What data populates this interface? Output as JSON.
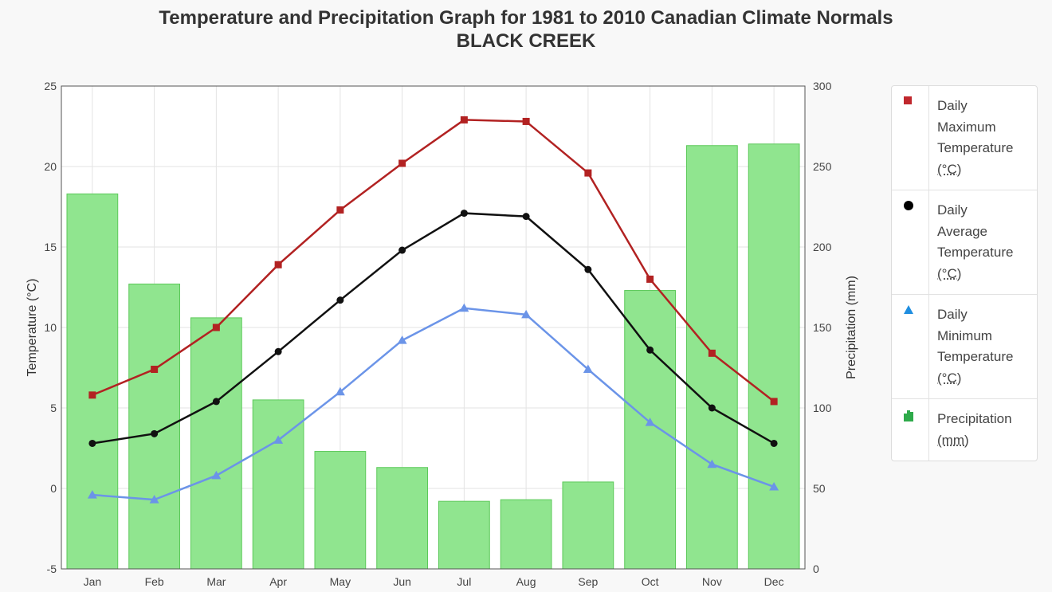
{
  "title": {
    "line1": "Temperature and Precipitation Graph for 1981 to 2010 Canadian Climate Normals",
    "line2": "BLACK CREEK"
  },
  "chart_data": {
    "type": "bar+line",
    "categories": [
      "Jan",
      "Feb",
      "Mar",
      "Apr",
      "May",
      "Jun",
      "Jul",
      "Aug",
      "Sep",
      "Oct",
      "Nov",
      "Dec"
    ],
    "y_left": {
      "label": "Temperature (°C)",
      "ylim": [
        -5,
        25
      ],
      "ticks": [
        -5,
        0,
        5,
        10,
        15,
        20,
        25
      ]
    },
    "y_right": {
      "label": "Precipitation (mm)",
      "ylim": [
        0,
        300
      ],
      "ticks": [
        0,
        50,
        100,
        150,
        200,
        250,
        300
      ]
    },
    "grid": true,
    "legend_position": "right",
    "series": [
      {
        "name": "Daily Maximum Temperature (°C)",
        "type": "line",
        "axis": "left",
        "marker": "square",
        "color": "#b22222",
        "values": [
          5.8,
          7.4,
          10.0,
          13.9,
          17.3,
          20.2,
          22.9,
          22.8,
          19.6,
          13.0,
          8.4,
          5.4
        ]
      },
      {
        "name": "Daily Average Temperature (°C)",
        "type": "line",
        "axis": "left",
        "marker": "circle",
        "color": "#111111",
        "values": [
          2.8,
          3.4,
          5.4,
          8.5,
          11.7,
          14.8,
          17.1,
          16.9,
          13.6,
          8.6,
          5.0,
          2.8
        ]
      },
      {
        "name": "Daily Minimum Temperature (°C)",
        "type": "line",
        "axis": "left",
        "marker": "triangle",
        "color": "#6b94e8",
        "values": [
          -0.4,
          -0.7,
          0.8,
          3.0,
          6.0,
          9.2,
          11.2,
          10.8,
          7.4,
          4.1,
          1.5,
          0.1
        ]
      },
      {
        "name": "Precipitation (mm)",
        "type": "bar",
        "axis": "right",
        "color": "#90e58f",
        "values": [
          233,
          177,
          156,
          105,
          73,
          63,
          42,
          43,
          54,
          173,
          263,
          264
        ]
      }
    ]
  },
  "legend": {
    "items": [
      {
        "line1": "Daily",
        "line2": "Maximum",
        "line3": "Temperature",
        "unit": "(°C)",
        "marker": "square",
        "color": "#c0272d"
      },
      {
        "line1": "Daily",
        "line2": "Average",
        "line3": "Temperature",
        "unit": "(°C)",
        "marker": "circle",
        "color": "#000000"
      },
      {
        "line1": "Daily",
        "line2": "Minimum",
        "line3": "Temperature",
        "unit": "(°C)",
        "marker": "triangle",
        "color": "#1f8ee0"
      },
      {
        "line1": "Precipitation",
        "unit": "(mm)",
        "marker": "bars",
        "color": "#2eaa4a"
      }
    ]
  }
}
